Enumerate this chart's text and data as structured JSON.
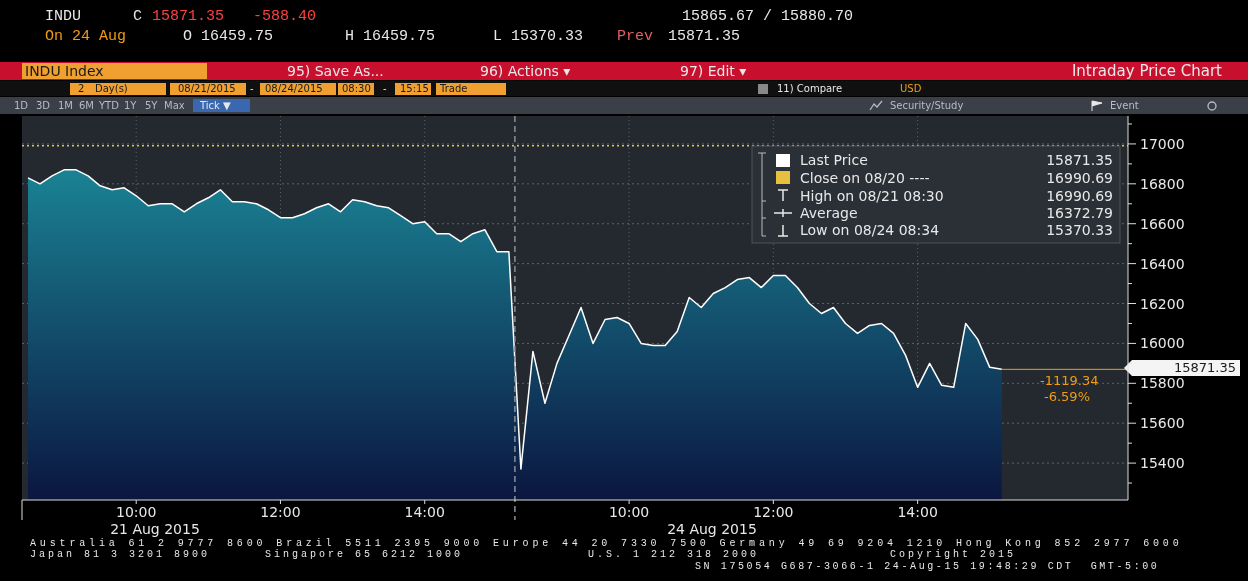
{
  "chart_data": {
    "type": "area",
    "categories": [
      null,
      null,
      null,
      null,
      null,
      null,
      null,
      null,
      null,
      "10:00",
      null,
      null,
      null,
      null,
      null,
      null,
      null,
      null,
      null,
      null,
      null,
      "12:00",
      null,
      null,
      null,
      null,
      null,
      null,
      null,
      null,
      null,
      null,
      null,
      "14:00",
      null,
      null,
      null,
      null,
      null,
      null,
      null,
      null,
      null,
      null,
      null,
      null,
      null,
      null,
      null,
      null,
      "10:00",
      null,
      null,
      null,
      null,
      null,
      null,
      null,
      null,
      null,
      null,
      null,
      "12:00",
      null,
      null,
      null,
      null,
      null,
      null,
      null,
      null,
      null,
      null,
      null,
      "14:00",
      null,
      null,
      null,
      null,
      null,
      null,
      null,
      null,
      null,
      null,
      null,
      null,
      null,
      null,
      null,
      null,
      null
    ],
    "series": [
      {
        "name": "Last Price",
        "color": "#ffffff",
        "values": [
          16830,
          16800,
          16840,
          16870,
          16870,
          16840,
          16790,
          16770,
          16780,
          16740,
          16690,
          16700,
          16700,
          16660,
          16700,
          16730,
          16770,
          16710,
          16710,
          16700,
          16670,
          16630,
          16630,
          16650,
          16680,
          16700,
          16660,
          16720,
          16710,
          16690,
          16680,
          16640,
          16600,
          16610,
          16550,
          16550,
          16510,
          16550,
          16570,
          16460,
          16460,
          15370,
          15960,
          15700,
          15900,
          16040,
          16180,
          16000,
          16120,
          16130,
          16100,
          16000,
          15990,
          15990,
          16060,
          16230,
          16180,
          16250,
          16280,
          16320,
          16330,
          16280,
          16340,
          16340,
          16280,
          16200,
          16150,
          16180,
          16100,
          16050,
          16090,
          16100,
          16050,
          15940,
          15780,
          15900,
          15790,
          15780,
          16100,
          16020,
          15880,
          15870,
          null,
          null,
          null,
          null,
          null,
          null,
          null,
          null,
          null,
          null
        ]
      }
    ],
    "ylim": [
      15215,
      17140
    ],
    "yticks": [
      {
        "value": 15300,
        "label": null
      },
      15400,
      {
        "value": 15500,
        "label": null
      },
      15600,
      {
        "value": 15700,
        "label": null
      },
      15800,
      {
        "value": 15900,
        "label": null
      },
      16000,
      {
        "value": 16100,
        "label": null
      },
      16200,
      {
        "value": 16300,
        "label": null
      },
      16400,
      {
        "value": 16500,
        "label": null
      },
      16600,
      {
        "value": 16700,
        "label": null
      },
      16800,
      {
        "value": 16900,
        "label": null
      },
      17000,
      {
        "value": 17100,
        "label": null
      }
    ],
    "grid": true,
    "legend": "top right",
    "ref_lines": [
      {
        "axis": "y",
        "value": 16990.69,
        "label": "Close on 08/20 ----",
        "color": "#e8c040",
        "line_style": "dotted"
      }
    ],
    "annotations": [
      "INDU",
      "C",
      "15871.35",
      "-588.40",
      "15865.67 / 15880.70",
      "On 24 Aug",
      "O 16459.75",
      "H 16459.75",
      "L 15370.33",
      "Prev",
      "15871.35",
      "INDU Index",
      "95) Save As...",
      "96) Actions ▾",
      "97) Edit ▾",
      "Intraday Price Chart",
      "2",
      "Day(s)",
      "08/21/2015",
      "-",
      "08/24/2015",
      "08:30",
      "-",
      "15:15",
      "Trade",
      "11) Compare",
      "USD",
      "1D",
      "3D",
      "1M",
      "6M",
      "YTD",
      "1Y",
      "5Y",
      "Max",
      "Tick ▼",
      "Security/Study",
      "Event",
      "15871.35",
      "High on 08/21 08:30",
      "16990.69",
      "Average",
      "16372.79",
      "Low on 08/24 08:34",
      "15370.33",
      "15871.35",
      "-1119.34",
      "-6.59%",
      "21 Aug 2015",
      "24 Aug 2015",
      "Australia 61 2 9777 8600 Brazil 5511 2395 9000 Europe 44 20 7330 7500 Germany 49 69 9204 1210 Hong Kong 852 2977 6000",
      "Japan 81 3 3201 8900",
      "Singapore 65 6212 1000",
      "U.S. 1 212 318 2000",
      "Copyright 2015",
      "SN 175054 G687-3066-1 24-Aug-15 19:48:29 CDT  GMT-5:00"
    ]
  }
}
